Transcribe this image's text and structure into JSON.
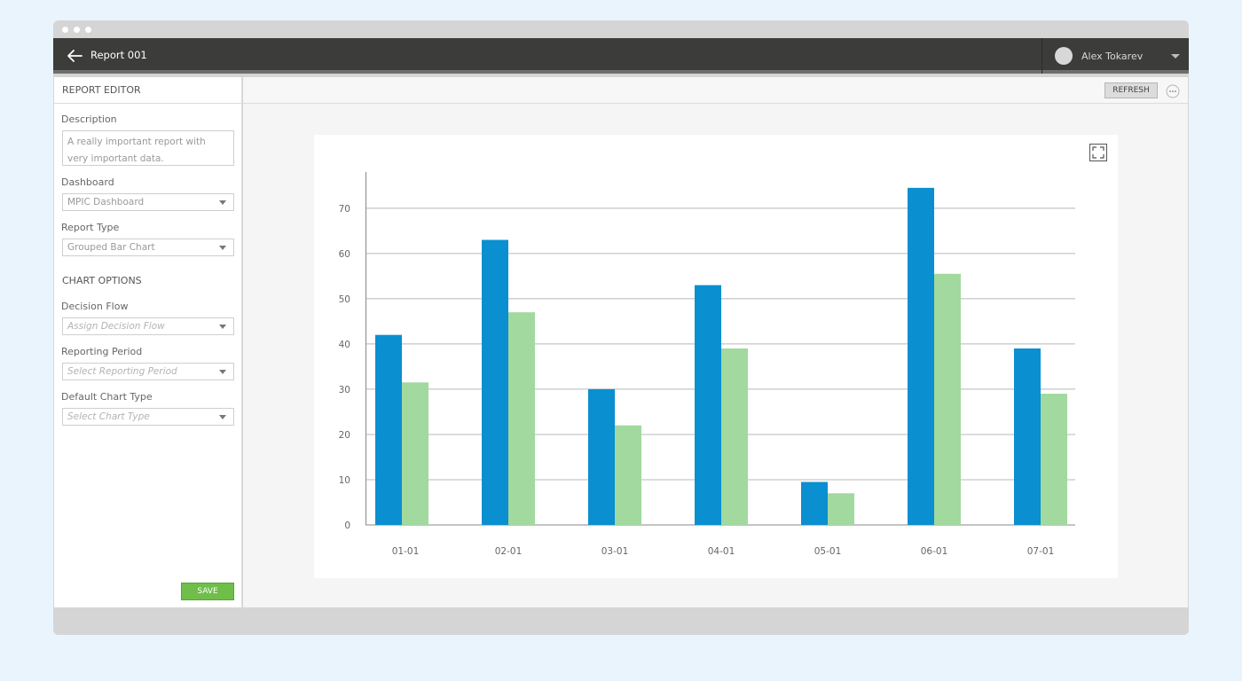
{
  "app": {
    "title": "Report 001",
    "user_name": "Alex Tokarev"
  },
  "sidebar": {
    "header": "REPORT EDITOR",
    "description_label": "Description",
    "description_value": "A really important report with very important data.",
    "dashboard_label": "Dashboard",
    "dashboard_value": "MPIC Dashboard",
    "report_type_label": "Report Type",
    "report_type_value": "Grouped Bar Chart",
    "chart_options_title": "CHART OPTIONS",
    "decision_flow_label": "Decision Flow",
    "decision_flow_placeholder": "Assign Decision Flow",
    "reporting_period_label": "Reporting Period",
    "reporting_period_placeholder": "Select Reporting Period",
    "default_chart_type_label": "Default Chart Type",
    "default_chart_type_placeholder": "Select Chart Type",
    "save_label": "SAVE"
  },
  "toolbar": {
    "refresh_label": "REFRESH"
  },
  "colors": {
    "series_a": "#0a8fd0",
    "series_b": "#a1d99e",
    "save_green": "#6fbe4a"
  },
  "chart_data": {
    "type": "bar",
    "categories": [
      "01-01",
      "02-01",
      "03-01",
      "04-01",
      "05-01",
      "06-01",
      "07-01"
    ],
    "series": [
      {
        "values": [
          42,
          63,
          30,
          53,
          9.5,
          74.5,
          39
        ]
      },
      {
        "values": [
          31.5,
          47,
          22,
          39,
          7,
          55.5,
          29
        ]
      }
    ],
    "yticks": [
      0,
      10,
      20,
      30,
      40,
      50,
      60,
      70
    ],
    "ylim": [
      0,
      78
    ],
    "grid": true
  }
}
